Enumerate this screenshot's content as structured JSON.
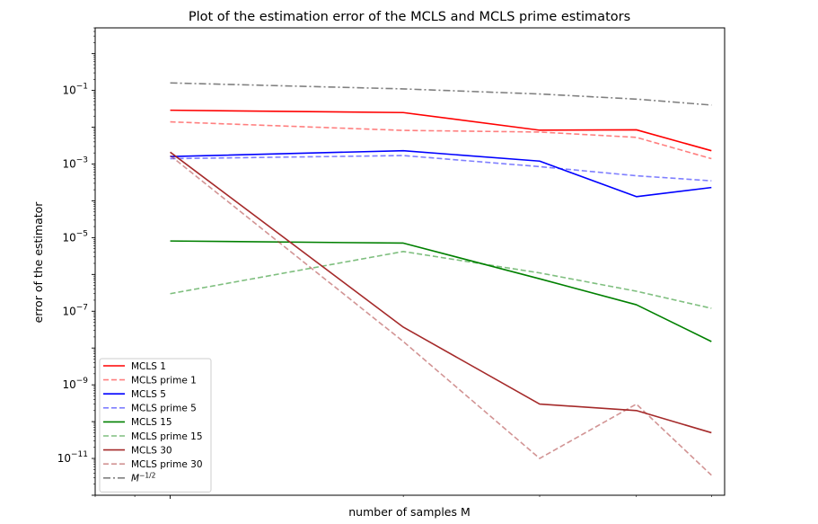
{
  "chart_data": {
    "type": "line",
    "title": "Plot of the estimation error of the MCLS and MCLS prime estimators",
    "xlabel": "number of samples M",
    "ylabel": "error of the estimator",
    "yscale": "log",
    "xscale": "log",
    "xlim": [
      0.8,
      5.2
    ],
    "ylim_exponent": [
      -12,
      0.7
    ],
    "x": [
      1,
      2,
      3,
      4,
      5
    ],
    "yticks": [
      {
        "exp": -1,
        "label": "10",
        "sup": "−1"
      },
      {
        "exp": -3,
        "label": "10",
        "sup": "−3"
      },
      {
        "exp": -5,
        "label": "10",
        "sup": "−5"
      },
      {
        "exp": -7,
        "label": "10",
        "sup": "−7"
      },
      {
        "exp": -9,
        "label": "10",
        "sup": "−9"
      },
      {
        "exp": -11,
        "label": "10",
        "sup": "−11"
      }
    ],
    "grid": false,
    "legend_position": "lower-left",
    "series": [
      {
        "name": "MCLS 1",
        "color": "#ff0000",
        "opacity": 1,
        "dash": "solid",
        "values": [
          0.029,
          0.025,
          0.0083,
          0.0085,
          0.0023
        ]
      },
      {
        "name": "MCLS prime 1",
        "color": "#ff0000",
        "opacity": 0.5,
        "dash": "dashed",
        "values": [
          0.014,
          0.0082,
          0.0074,
          0.0053,
          0.0014
        ]
      },
      {
        "name": "MCLS 5",
        "color": "#0000ff",
        "opacity": 1,
        "dash": "solid",
        "values": [
          0.0016,
          0.0023,
          0.0012,
          0.00013,
          0.00023
        ]
      },
      {
        "name": "MCLS prime 5",
        "color": "#0000ff",
        "opacity": 0.5,
        "dash": "dashed",
        "values": [
          0.0014,
          0.0017,
          0.00085,
          0.00048,
          0.00035
        ]
      },
      {
        "name": "MCLS 15",
        "color": "#008000",
        "opacity": 1,
        "dash": "solid",
        "values": [
          8.1e-06,
          7.1e-06,
          7.6e-07,
          1.5e-07,
          1.5e-08
        ]
      },
      {
        "name": "MCLS prime 15",
        "color": "#008000",
        "opacity": 0.5,
        "dash": "dashed",
        "values": [
          3e-07,
          4.2e-06,
          1.1e-06,
          3.5e-07,
          1.2e-07
        ]
      },
      {
        "name": "MCLS 30",
        "color": "#a52a2a",
        "opacity": 1,
        "dash": "solid",
        "values": [
          0.0021,
          3.7e-08,
          3e-10,
          2e-10,
          5e-11
        ]
      },
      {
        "name": "MCLS prime 30",
        "color": "#a52a2a",
        "opacity": 0.5,
        "dash": "dashed",
        "values": [
          0.0017,
          1.5e-08,
          1e-11,
          3e-10,
          3.5e-12
        ]
      },
      {
        "name": "M^{-1/2}",
        "legend_label": "M",
        "legend_sup": "−1/2",
        "color": "#808080",
        "opacity": 1,
        "dash": "dashdot",
        "values": [
          0.16,
          0.11,
          0.08,
          0.058,
          0.04
        ]
      }
    ]
  }
}
